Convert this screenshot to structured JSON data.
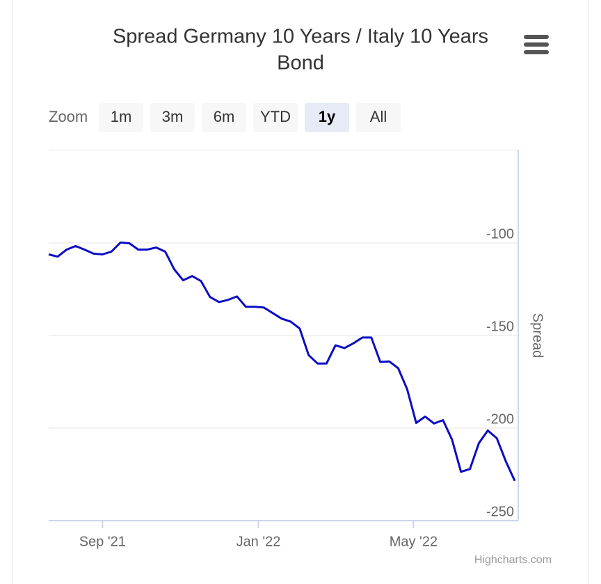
{
  "chart_data": {
    "type": "line",
    "title": "Spread Germany 10 Years / Italy 10 Years",
    "title_line2": "Bond",
    "zoom_label": "Zoom",
    "zoom_buttons": [
      "1m",
      "3m",
      "6m",
      "YTD",
      "1y",
      "All"
    ],
    "zoom_selected": 4,
    "y_axis_title": "Spread",
    "credits": "Highcharts.com",
    "categories": [
      null,
      null,
      null,
      null,
      null,
      null,
      null,
      null,
      null,
      null,
      null,
      null,
      null,
      null,
      null,
      null,
      null,
      null,
      null,
      null,
      null,
      null,
      null,
      null,
      null,
      null,
      null,
      null,
      null,
      null,
      null,
      null,
      null,
      null,
      null,
      null,
      null,
      null,
      null,
      null,
      null,
      null,
      null,
      null,
      null,
      null,
      null,
      null,
      null,
      null,
      null,
      null,
      null
    ],
    "series": [
      {
        "name": "Spread",
        "color": "#0c0cc4",
        "values": [
          -106.2,
          -107.4,
          -103.6,
          -101.7,
          -103.6,
          -105.8,
          -106.2,
          -104.7,
          -99.8,
          -100.2,
          -103.6,
          -103.6,
          -102.5,
          -104.7,
          -114.2,
          -120.2,
          -117.9,
          -120.6,
          -129.2,
          -131.9,
          -130.8,
          -128.9,
          -134.5,
          -134.5,
          -134.9,
          -137.9,
          -140.9,
          -142.5,
          -146.2,
          -160.6,
          -165.1,
          -165.1,
          -155.3,
          -156.8,
          -154.2,
          -151.1,
          -151.1,
          -164.3,
          -164.0,
          -167.7,
          -179.1,
          -197.2,
          -193.8,
          -197.5,
          -195.7,
          -206.2,
          -223.6,
          -222.1,
          -208.1,
          -201.3,
          -205.5,
          -217.9,
          -228.5
        ]
      }
    ],
    "xticks": [
      {
        "value": 6,
        "label": "Sep '21"
      },
      {
        "value": 23.4,
        "label": "Jan '22"
      },
      {
        "value": 40.7,
        "label": "May '22"
      }
    ],
    "ylim": [
      -250,
      -50
    ],
    "yticks": [
      -100,
      -150,
      -200,
      -250
    ],
    "grid": true
  }
}
